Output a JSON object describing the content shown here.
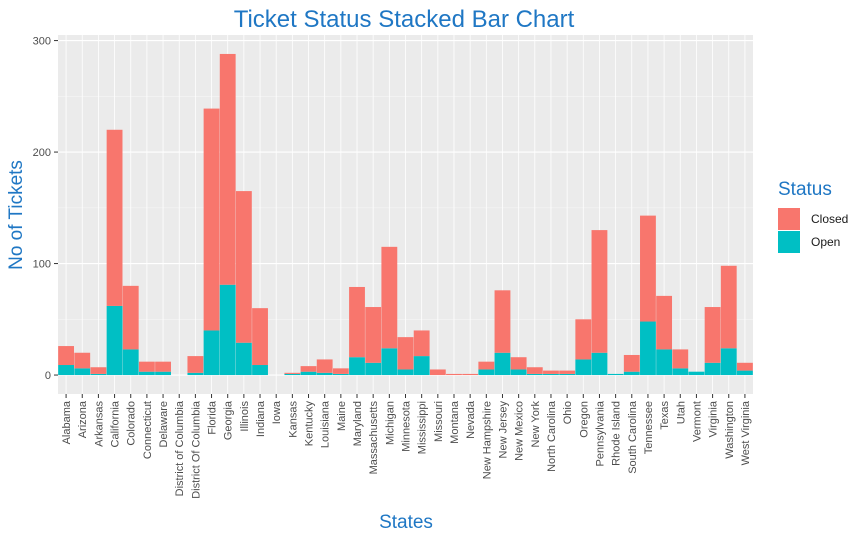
{
  "chart_data": {
    "type": "bar",
    "stacked": true,
    "title": "Ticket Status Stacked Bar Chart",
    "xlabel": "States",
    "ylabel": "No of Tickets",
    "ylim": [
      -17,
      305
    ],
    "yticks": [
      0,
      100,
      200,
      300
    ],
    "grid": true,
    "legend": {
      "title": "Status",
      "position": "right"
    },
    "categories": [
      "Alabama",
      "Arizona",
      "Arkansas",
      "California",
      "Colorado",
      "Connecticut",
      "Delaware",
      "District of Columbia",
      "District Of Columbia",
      "Florida",
      "Georgia",
      "Illinois",
      "Indiana",
      "Iowa",
      "Kansas",
      "Kentucky",
      "Louisiana",
      "Maine",
      "Maryland",
      "Massachusetts",
      "Michigan",
      "Minnesota",
      "Mississippi",
      "Missouri",
      "Montana",
      "Nevada",
      "New Hampshire",
      "New Jersey",
      "New Mexico",
      "New York",
      "North Carolina",
      "Ohio",
      "Oregon",
      "Pennsylvania",
      "Rhode Island",
      "South Carolina",
      "Tennessee",
      "Texas",
      "Utah",
      "Vermont",
      "Virginia",
      "Washington",
      "West Virginia"
    ],
    "series": [
      {
        "name": "Open",
        "color": "#00BFC4",
        "values": [
          9,
          6,
          1,
          62,
          23,
          3,
          3,
          0,
          2,
          40,
          81,
          29,
          9,
          0,
          1,
          3,
          2,
          1,
          16,
          11,
          24,
          5,
          17,
          0,
          0,
          0,
          5,
          20,
          5,
          1,
          1,
          1,
          14,
          20,
          1,
          3,
          48,
          23,
          6,
          3,
          11,
          24,
          4
        ]
      },
      {
        "name": "Closed",
        "color": "#F8766D",
        "values": [
          17,
          14,
          6,
          158,
          57,
          9,
          9,
          0,
          15,
          199,
          207,
          136,
          51,
          0,
          1,
          5,
          12,
          5,
          63,
          50,
          91,
          29,
          23,
          5,
          1,
          1,
          7,
          56,
          11,
          6,
          3,
          3,
          36,
          110,
          0,
          15,
          95,
          48,
          17,
          0,
          50,
          74,
          7
        ]
      }
    ]
  }
}
